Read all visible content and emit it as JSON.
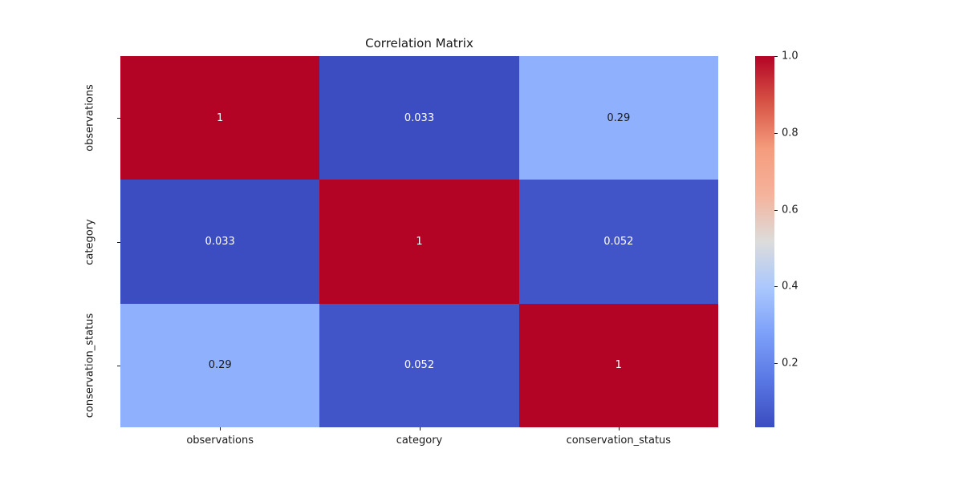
{
  "figure": {
    "title": "Correlation Matrix",
    "background_color": "#ffffff",
    "text_color": "#1a1a1a"
  },
  "chart_data": {
    "type": "heatmap",
    "title": "Correlation Matrix",
    "x_labels": [
      "observations",
      "category",
      "conservation_status"
    ],
    "y_labels": [
      "observations",
      "category",
      "conservation_status"
    ],
    "matrix": [
      [
        1,
        0.033,
        0.29
      ],
      [
        0.033,
        1,
        0.052
      ],
      [
        0.29,
        0.052,
        1
      ]
    ],
    "cell_annotations": [
      [
        "1",
        "0.033",
        "0.29"
      ],
      [
        "0.033",
        "1",
        "0.052"
      ],
      [
        "0.29",
        "0.052",
        "1"
      ]
    ],
    "cell_colors": [
      [
        "#b40426",
        "#3b4dc1",
        "#8fb0fd"
      ],
      [
        "#3b4dc1",
        "#b40426",
        "#4154c8"
      ],
      [
        "#8fb0fd",
        "#4154c8",
        "#b40426"
      ]
    ],
    "cell_text_colors": [
      [
        "#ffffff",
        "#ffffff",
        "#1a1a1a"
      ],
      [
        "#ffffff",
        "#ffffff",
        "#ffffff"
      ],
      [
        "#1a1a1a",
        "#ffffff",
        "#ffffff"
      ]
    ],
    "colormap": "coolwarm",
    "vmin": 0.033,
    "vmax": 1.0,
    "grid": false,
    "legend_position": "right-colorbar",
    "colorbar": {
      "ticks": [
        {
          "label": "1.0",
          "value": 1.0
        },
        {
          "label": "0.8",
          "value": 0.8
        },
        {
          "label": "0.6",
          "value": 0.6
        },
        {
          "label": "0.4",
          "value": 0.4
        },
        {
          "label": "0.2",
          "value": 0.2
        }
      ],
      "gradient_stops_bottom_to_top": [
        "#3b4cc0",
        "#5977e3",
        "#7c9ff9",
        "#aac7fd",
        "#dcdcdb",
        "#f5b39c",
        "#f59c7d",
        "#d75445",
        "#b40426"
      ]
    }
  }
}
